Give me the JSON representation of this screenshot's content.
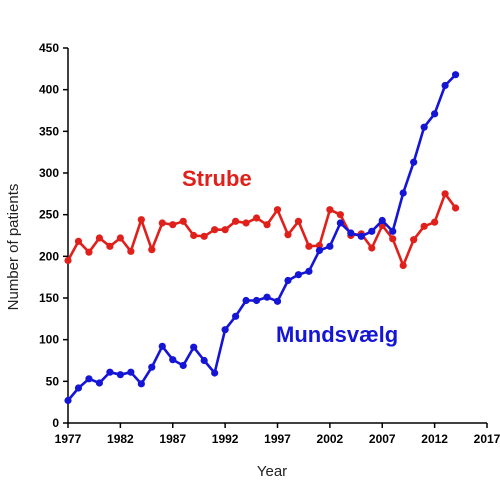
{
  "chart_data": {
    "type": "line",
    "xlabel": "Year",
    "ylabel": "Number of patients",
    "xlim": [
      1977,
      2017
    ],
    "ylim": [
      0,
      450
    ],
    "x_ticks": [
      1977,
      1982,
      1987,
      1992,
      1997,
      2002,
      2007,
      2012,
      2017
    ],
    "y_ticks": [
      0,
      50,
      100,
      150,
      200,
      250,
      300,
      350,
      400,
      450
    ],
    "grid": false,
    "legend": "none",
    "series": [
      {
        "name": "Strube",
        "color": "#e0201b",
        "x": [
          1977,
          1978,
          1979,
          1980,
          1981,
          1982,
          1983,
          1984,
          1985,
          1986,
          1987,
          1988,
          1989,
          1990,
          1991,
          1992,
          1993,
          1994,
          1995,
          1996,
          1997,
          1998,
          1999,
          2000,
          2001,
          2002,
          2003,
          2004,
          2005,
          2006,
          2007,
          2008,
          2009,
          2010,
          2011,
          2012,
          2013,
          2014
        ],
        "values": [
          195,
          218,
          205,
          222,
          212,
          222,
          206,
          244,
          208,
          240,
          238,
          242,
          225,
          224,
          232,
          232,
          242,
          240,
          246,
          238,
          256,
          226,
          242,
          212,
          213,
          256,
          250,
          225,
          227,
          210,
          237,
          221,
          189,
          220,
          236,
          241,
          275,
          258
        ]
      },
      {
        "name": "Mundsvælg",
        "color": "#1515d6",
        "x": [
          1977,
          1978,
          1979,
          1980,
          1981,
          1982,
          1983,
          1984,
          1985,
          1986,
          1987,
          1988,
          1989,
          1990,
          1991,
          1992,
          1993,
          1994,
          1995,
          1996,
          1997,
          1998,
          1999,
          2000,
          2001,
          2002,
          2003,
          2004,
          2005,
          2006,
          2007,
          2008,
          2009,
          2010,
          2011,
          2012,
          2013,
          2014
        ],
        "values": [
          27,
          42,
          53,
          48,
          61,
          58,
          61,
          47,
          67,
          92,
          76,
          69,
          91,
          75,
          60,
          112,
          128,
          147,
          147,
          151,
          146,
          171,
          178,
          182,
          207,
          212,
          240,
          228,
          224,
          230,
          243,
          230,
          276,
          313,
          355,
          371,
          405,
          418
        ]
      }
    ],
    "annotations": [
      {
        "text": "Strube",
        "series": 0
      },
      {
        "text": "Mundsvælg",
        "series": 1
      }
    ]
  }
}
